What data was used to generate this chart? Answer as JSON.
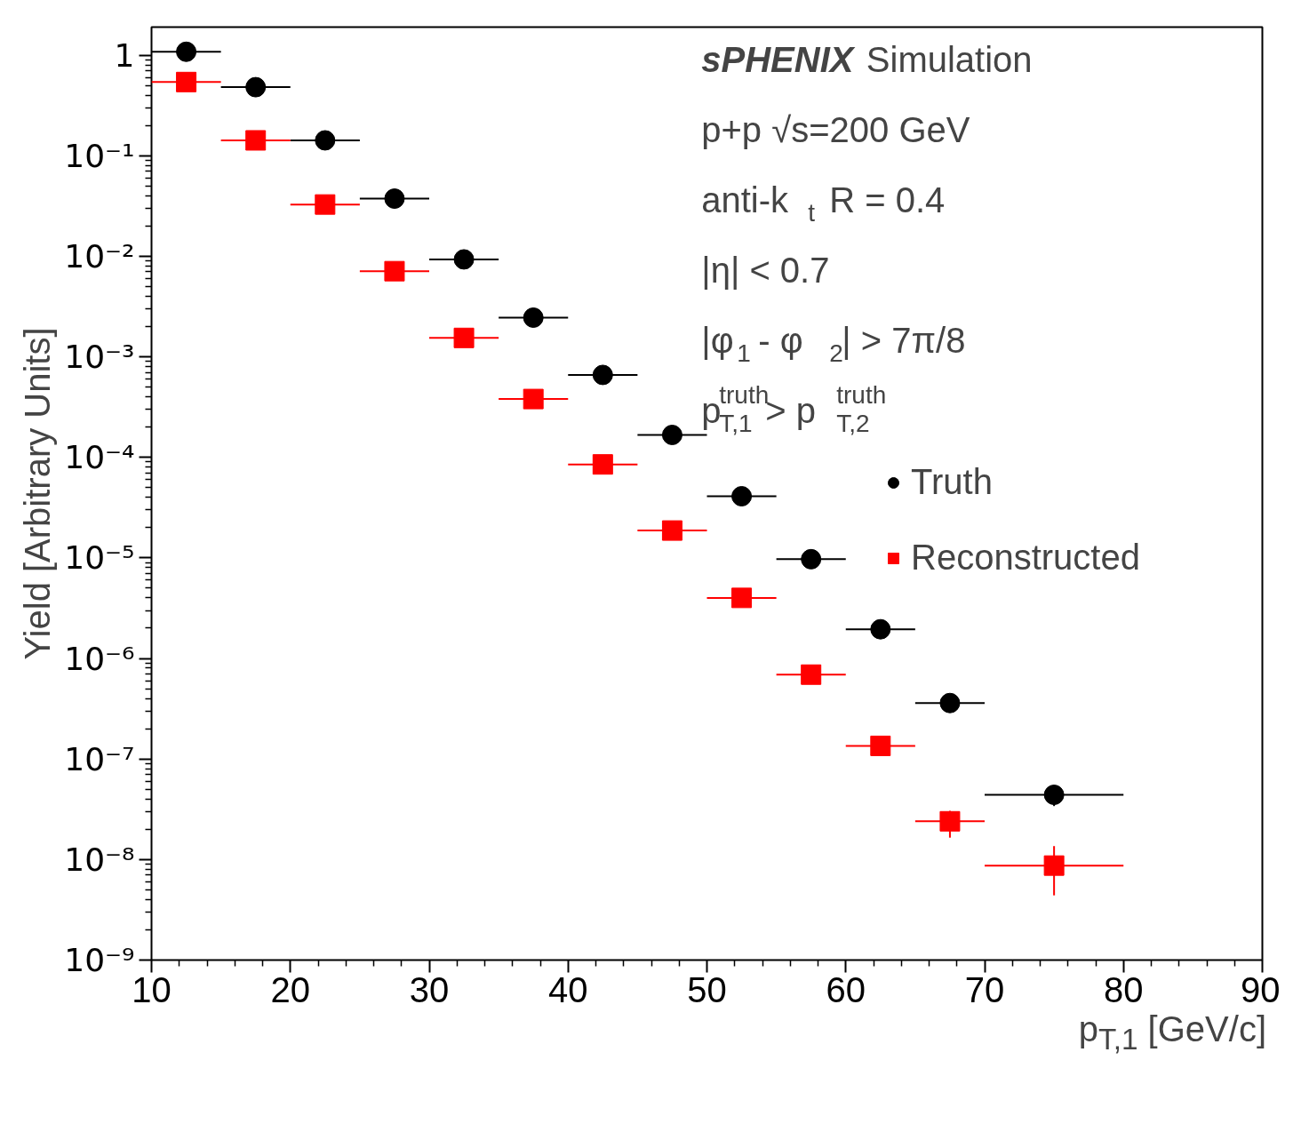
{
  "chart_data": {
    "type": "scatter",
    "title": "sPHENIX Simulation",
    "xlabel": "p$_{T,1}$ [GeV/c]",
    "ylabel": "Yield [Arbitrary Units]",
    "annotations": [
      "p+p √s=200 GeV",
      "anti-k$_{t}$ R = 0.4",
      "|η| < 0.7",
      "|φ$_{1}$ - φ$_{2}$| > 7π/8",
      "p$^{truth}$$_{T,1}$ > p$^{truth}$$_{T,2}$"
    ],
    "x": [
      12.5,
      17.5,
      22.5,
      27.5,
      32.5,
      37.5,
      42.5,
      47.5,
      52.5,
      57.5,
      62.5,
      67.5,
      75
    ],
    "series": [
      {
        "name": "Truth",
        "color": "#000000",
        "marker": "circle",
        "values": [
          1.08,
          0.48,
          0.142,
          0.0374,
          0.0093,
          0.00245,
          0.00066,
          0.000167,
          4.1e-05,
          9.7e-06,
          1.95e-06,
          3.6e-07,
          4.4e-08
        ],
        "xerrors": [
          2.5,
          2.5,
          2.5,
          2.5,
          2.5,
          2.5,
          2.5,
          2.5,
          2.5,
          2.5,
          2.5,
          2.5,
          5
        ],
        "errors": [
          null,
          null,
          null,
          null,
          null,
          null,
          null,
          null,
          null,
          null,
          null,
          null,
          [
            3.4e-08,
            5.15e-08
          ]
        ]
      },
      {
        "name": "Reconstructed",
        "color": "#ff0000",
        "marker": "square",
        "values": [
          0.54,
          0.142,
          0.0327,
          0.0071,
          0.00154,
          0.00038,
          8.5e-05,
          1.87e-05,
          4e-06,
          6.9e-07,
          1.35e-07,
          2.4e-08,
          8.7e-09
        ],
        "xerrors": [
          2.5,
          2.5,
          2.5,
          2.5,
          2.5,
          2.5,
          2.5,
          2.5,
          2.5,
          2.5,
          2.5,
          2.5,
          5
        ],
        "errors": [
          null,
          null,
          null,
          null,
          null,
          null,
          null,
          null,
          null,
          null,
          null,
          [
            1.65e-08,
            3.05e-08
          ],
          [
            4.4e-09,
            1.36e-08
          ]
        ]
      }
    ],
    "log": "y",
    "grid": false,
    "legend": "right",
    "xlim": [
      10,
      90
    ],
    "xticks": [
      10,
      20,
      30,
      40,
      50,
      60,
      70,
      80,
      90
    ],
    "ylim": [
      1e-09,
      1.9
    ],
    "yticks": [
      {
        "value": 1e-09,
        "label": "10⁻⁹"
      },
      {
        "value": 1e-08,
        "label": "10⁻⁸"
      },
      {
        "value": 1e-07,
        "label": "10⁻⁷"
      },
      {
        "value": 1e-06,
        "label": "10⁻⁶"
      },
      {
        "value": 1e-05,
        "label": "10⁻⁵"
      },
      {
        "value": 0.0001,
        "label": "10⁻⁴"
      },
      {
        "value": 0.001,
        "label": "10⁻³"
      },
      {
        "value": 0.01,
        "label": "10⁻²"
      },
      {
        "value": 0.1,
        "label": "10⁻¹"
      },
      {
        "value": 1,
        "label": "1"
      }
    ]
  }
}
